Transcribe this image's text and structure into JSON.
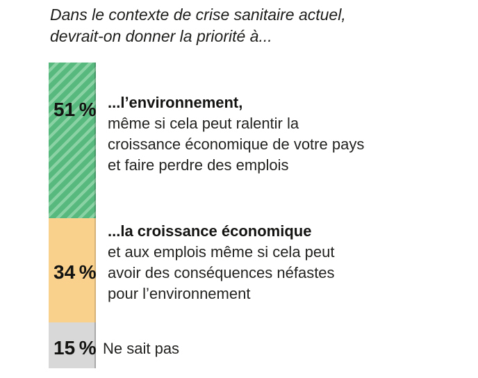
{
  "title": {
    "lines": [
      "Dans le contexte de crise sanitaire actuel,",
      "devrait-on donner la priorité à..."
    ]
  },
  "colors": {
    "green": "#58b97f",
    "green_stripe": "#8ad1a3",
    "orange": "#f9d18c",
    "gray": "#d8d8d8",
    "text": "#1d1d1b"
  },
  "chart_data": {
    "type": "bar",
    "orientation": "vertical-stacked",
    "title": "Dans le contexte de crise sanitaire actuel, devrait-on donner la priorité à...",
    "categories": [
      "...l’environnement",
      "...la croissance économique",
      "Ne sait pas"
    ],
    "values": [
      51,
      34,
      15
    ],
    "unit": "%",
    "legend_position": "right-of-bar",
    "grid": false,
    "segments": [
      {
        "name": "environnement",
        "value": 51,
        "label": "51 %",
        "color": "#58b97f",
        "pattern": "diagonal-stripes",
        "text_lines": [
          "...l’environnement,",
          "même si cela peut ralentir la",
          "croissance économique de votre pays",
          "et faire perdre des emplois"
        ]
      },
      {
        "name": "croissance-economique",
        "value": 34,
        "label": "34 %",
        "color": "#f9d18c",
        "pattern": "solid",
        "text_lines": [
          "...la croissance économique",
          "et aux emplois même si cela peut",
          "avoir des conséquences néfastes",
          "pour l’environnement"
        ]
      },
      {
        "name": "ne-sait-pas",
        "value": 15,
        "label": "15 %",
        "color": "#d8d8d8",
        "pattern": "solid",
        "text_lines": [
          "Ne sait pas"
        ]
      }
    ]
  }
}
